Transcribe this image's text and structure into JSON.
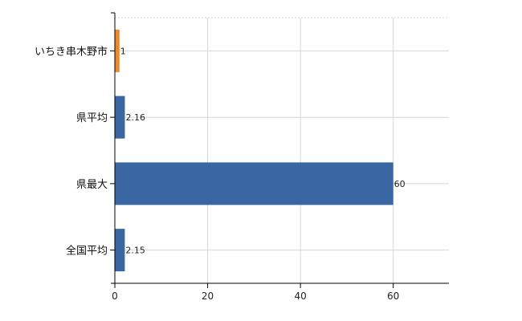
{
  "chart_data": {
    "type": "bar",
    "orientation": "horizontal",
    "categories": [
      "いちき串木野市",
      "県平均",
      "県最大",
      "全国平均"
    ],
    "values": [
      1,
      2.16,
      60,
      2.15
    ],
    "data_labels": [
      "1",
      "2.16",
      "60",
      "2.15"
    ],
    "bar_colors": [
      "#e8892b",
      "#3a67a2",
      "#3a67a2",
      "#3a67a2"
    ],
    "xlim": [
      0,
      72
    ],
    "xticks": [
      0,
      20,
      40,
      60
    ],
    "xtick_labels": [
      "0",
      "20",
      "40",
      "60"
    ],
    "grid": true,
    "grid_dashed_top": true,
    "legend": "none"
  }
}
